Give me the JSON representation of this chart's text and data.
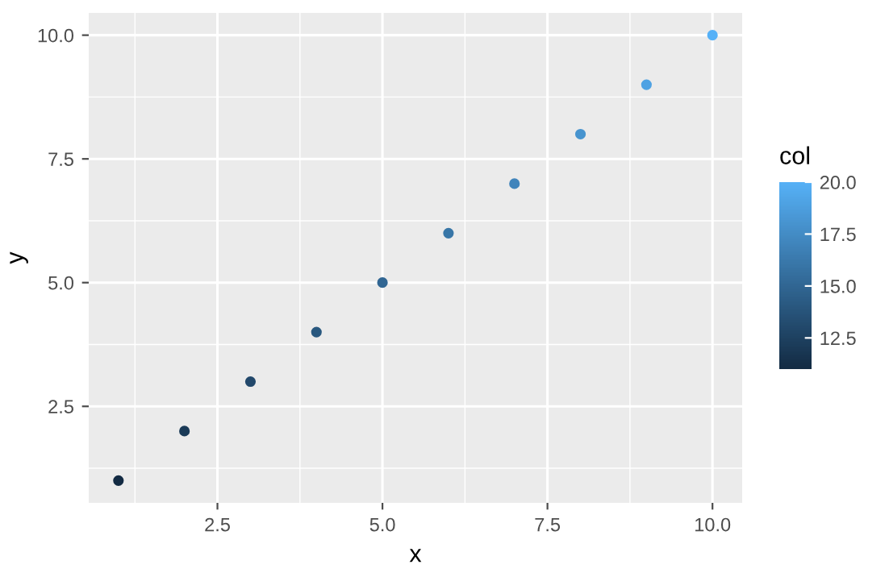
{
  "chart_data": {
    "type": "scatter",
    "xlabel": "x",
    "ylabel": "y",
    "clabel": "col",
    "x": [
      1,
      2,
      3,
      4,
      5,
      6,
      7,
      8,
      9,
      10
    ],
    "series": [
      {
        "values": [
          1,
          2,
          3,
          4,
          5,
          6,
          7,
          8,
          9,
          10
        ],
        "cvalues": [
          11,
          12,
          13,
          14,
          15,
          16,
          17,
          18,
          19,
          20
        ]
      }
    ],
    "xlim": [
      0.55,
      10.45
    ],
    "ylim": [
      0.55,
      10.45
    ],
    "xticks": [
      {
        "value": 2.5,
        "label": "2.5"
      },
      {
        "value": 5,
        "label": "5.0"
      },
      {
        "value": 7.5,
        "label": "7.5"
      },
      {
        "value": 10,
        "label": "10.0"
      }
    ],
    "yticks": [
      {
        "value": 2.5,
        "label": "2.5"
      },
      {
        "value": 5,
        "label": "5.0"
      },
      {
        "value": 7.5,
        "label": "7.5"
      },
      {
        "value": 10,
        "label": "10.0"
      }
    ],
    "clim": [
      11,
      20
    ],
    "cticks": [
      {
        "value": 12.5,
        "label": "12.5"
      },
      {
        "value": 15,
        "label": "15.0"
      },
      {
        "value": 17.5,
        "label": "17.5"
      },
      {
        "value": 20,
        "label": "20.0"
      }
    ],
    "grid": true,
    "marker": "circle"
  }
}
